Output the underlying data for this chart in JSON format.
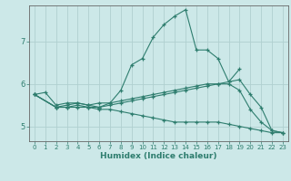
{
  "title": "",
  "xlabel": "Humidex (Indice chaleur)",
  "ylabel": "",
  "bg_color": "#cce8e8",
  "grid_color": "#b0d0d0",
  "line_color": "#2e7d6e",
  "xlim": [
    -0.5,
    23.5
  ],
  "ylim": [
    4.65,
    7.85
  ],
  "yticks": [
    5,
    6,
    7
  ],
  "xticks": [
    0,
    1,
    2,
    3,
    4,
    5,
    6,
    7,
    8,
    9,
    10,
    11,
    12,
    13,
    14,
    15,
    16,
    17,
    18,
    19,
    20,
    21,
    22,
    23
  ],
  "series": [
    [
      5.75,
      5.8,
      5.5,
      5.55,
      5.55,
      5.5,
      5.45,
      5.55,
      5.85,
      6.45,
      6.6,
      7.1,
      7.4,
      7.6,
      7.75,
      6.8,
      6.8,
      6.6,
      6.05,
      6.35,
      null,
      null,
      null,
      null
    ],
    [
      5.75,
      null,
      5.45,
      5.45,
      5.5,
      5.45,
      5.45,
      5.5,
      5.55,
      5.6,
      5.65,
      5.7,
      5.75,
      5.8,
      5.85,
      5.9,
      5.95,
      6.0,
      6.05,
      6.1,
      5.75,
      5.45,
      4.9,
      4.85
    ],
    [
      5.75,
      null,
      5.45,
      5.5,
      5.55,
      5.5,
      5.55,
      5.55,
      5.6,
      5.65,
      5.7,
      5.75,
      5.8,
      5.85,
      5.9,
      5.95,
      6.0,
      6.0,
      6.0,
      5.85,
      5.4,
      5.1,
      4.9,
      4.85
    ],
    [
      5.75,
      null,
      5.45,
      5.45,
      5.45,
      5.45,
      5.4,
      5.4,
      5.35,
      5.3,
      5.25,
      5.2,
      5.15,
      5.1,
      5.1,
      5.1,
      5.1,
      5.1,
      5.05,
      5.0,
      4.95,
      4.9,
      4.85,
      4.85
    ]
  ]
}
